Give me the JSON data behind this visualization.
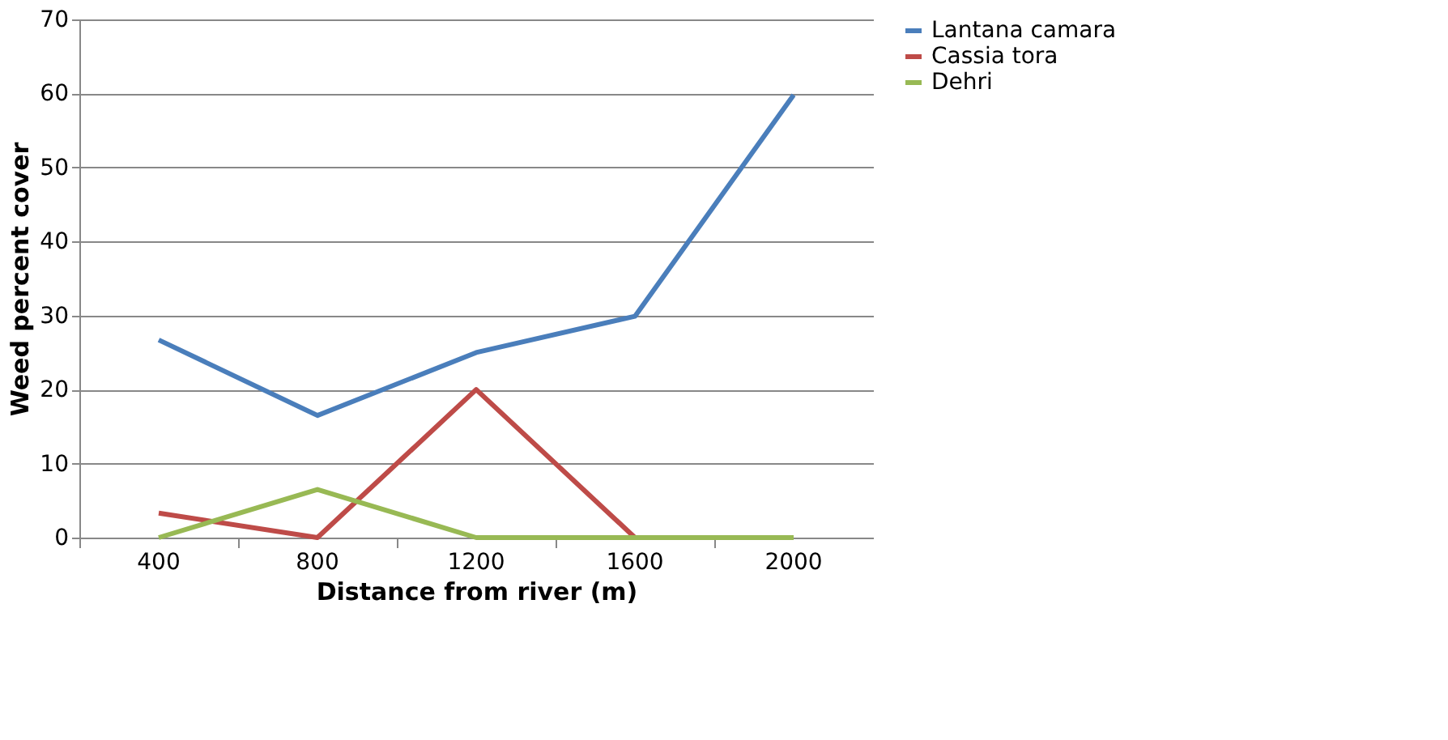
{
  "chart_data": {
    "type": "line",
    "xlabel": "Distance from river (m)",
    "ylabel": "Weed percent cover",
    "categories": [
      "400",
      "800",
      "1200",
      "1600",
      "2000"
    ],
    "series": [
      {
        "name": "Lantana camara",
        "color": "#4a7ebb",
        "values": [
          26.7,
          16.5,
          25,
          29.9,
          59.8
        ]
      },
      {
        "name": "Cassia tora",
        "color": "#be4b48",
        "values": [
          3.3,
          0,
          20,
          0,
          0
        ]
      },
      {
        "name": "Dehri",
        "color": "#98b954",
        "values": [
          0,
          6.5,
          0,
          0,
          0
        ]
      }
    ],
    "ylim": [
      0,
      70
    ],
    "yticks": [
      0,
      10,
      20,
      30,
      40,
      50,
      60,
      70
    ],
    "grid": "y",
    "legend": "right",
    "marker": "none",
    "line_style": "solid"
  }
}
